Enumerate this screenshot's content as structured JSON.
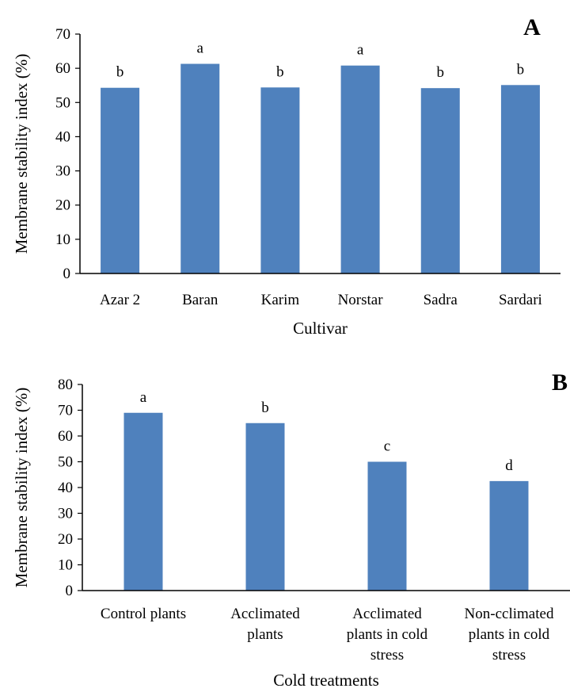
{
  "bar_color": "#4f81bd",
  "chart_data": [
    {
      "type": "bar",
      "panel_label": "A",
      "categories": [
        "Azar 2",
        "Baran",
        "Karim",
        "Norstar",
        "Sadra",
        "Sardari"
      ],
      "values": [
        54.3,
        61.3,
        54.4,
        60.8,
        54.2,
        55.1
      ],
      "letters": [
        "b",
        "a",
        "b",
        "a",
        "b",
        "b"
      ],
      "xlabel": "Cultivar",
      "ylabel": "Membrane stability index (%)",
      "ylim": [
        0,
        70
      ],
      "yticks": [
        0,
        10,
        20,
        30,
        40,
        50,
        60,
        70
      ],
      "grid": false,
      "legend": "none"
    },
    {
      "type": "bar",
      "panel_label": "B",
      "categories": [
        [
          "Control plants"
        ],
        [
          "Acclimated",
          "plants"
        ],
        [
          "Acclimated",
          "plants in cold",
          "stress"
        ],
        [
          "Non-cclimated",
          "plants in cold",
          "stress"
        ]
      ],
      "values": [
        69.0,
        65.0,
        50.0,
        42.5
      ],
      "letters": [
        "a",
        "b",
        "c",
        "d"
      ],
      "xlabel": "Cold treatments",
      "ylabel": "Membrane stability index (%)",
      "ylim": [
        0,
        80
      ],
      "yticks": [
        0,
        10,
        20,
        30,
        40,
        50,
        60,
        70,
        80
      ],
      "grid": false,
      "legend": "none"
    }
  ]
}
